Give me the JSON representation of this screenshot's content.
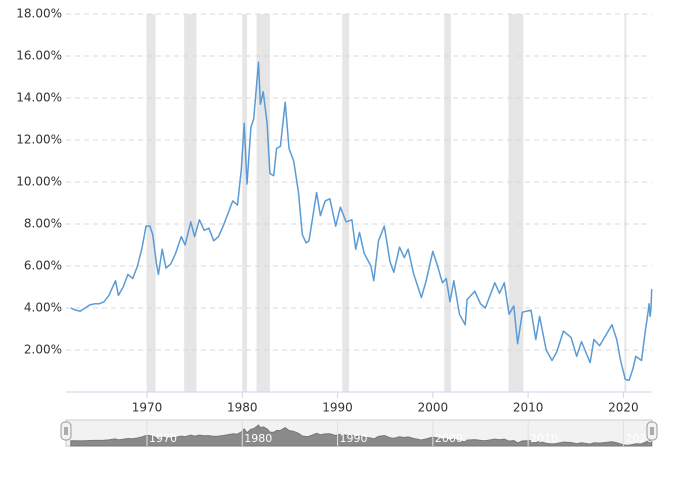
{
  "chart_data": {
    "type": "line",
    "color": "#5b9bd5",
    "grid": true,
    "xlim": [
      1961.5,
      2023
    ],
    "ylim": [
      0,
      18
    ],
    "xticks": [
      1970,
      1980,
      1990,
      2000,
      2010,
      2020
    ],
    "yticks": [
      {
        "value": 2,
        "label": "2.00%"
      },
      {
        "value": 4,
        "label": "4.00%"
      },
      {
        "value": 6,
        "label": "6.00%"
      },
      {
        "value": 8,
        "label": "8.00%"
      },
      {
        "value": 10,
        "label": "10.00%"
      },
      {
        "value": 12,
        "label": "12.00%"
      },
      {
        "value": 14,
        "label": "14.00%"
      },
      {
        "value": 16,
        "label": "16.00%"
      },
      {
        "value": 18,
        "label": "18.00%"
      }
    ],
    "recessions": [
      [
        1969.95,
        1970.9
      ],
      [
        1973.9,
        1975.2
      ],
      [
        1980.0,
        1980.5
      ],
      [
        1981.5,
        1982.9
      ],
      [
        1990.5,
        1991.2
      ],
      [
        2001.2,
        2001.9
      ],
      [
        2007.95,
        2009.5
      ],
      [
        2020.1,
        2020.3
      ]
    ],
    "x": [
      1962.0,
      1962.5,
      1963.0,
      1963.5,
      1964.0,
      1964.5,
      1965.0,
      1965.5,
      1966.0,
      1966.7,
      1967.0,
      1967.5,
      1968.0,
      1968.5,
      1969.0,
      1969.5,
      1969.9,
      1970.3,
      1970.6,
      1971.0,
      1971.2,
      1971.6,
      1972.0,
      1972.5,
      1973.0,
      1973.6,
      1974.0,
      1974.6,
      1975.0,
      1975.5,
      1976.0,
      1976.5,
      1977.0,
      1977.5,
      1978.0,
      1978.5,
      1979.0,
      1979.5,
      1979.9,
      1980.2,
      1980.5,
      1980.9,
      1981.2,
      1981.7,
      1981.9,
      1982.2,
      1982.6,
      1982.9,
      1983.3,
      1983.6,
      1984.0,
      1984.5,
      1984.9,
      1985.4,
      1985.9,
      1986.3,
      1986.7,
      1987.0,
      1987.8,
      1988.2,
      1988.7,
      1989.2,
      1989.8,
      1990.3,
      1990.9,
      1991.5,
      1991.9,
      1992.3,
      1992.8,
      1993.5,
      1993.8,
      1994.3,
      1994.9,
      1995.5,
      1995.9,
      1996.5,
      1997.0,
      1997.4,
      1998.0,
      1998.8,
      1999.3,
      2000.0,
      2000.5,
      2001.0,
      2001.4,
      2001.8,
      2002.2,
      2002.8,
      2003.4,
      2003.6,
      2004.4,
      2005.0,
      2005.5,
      2006.5,
      2007.0,
      2007.5,
      2008.0,
      2008.5,
      2008.9,
      2009.4,
      2010.3,
      2010.8,
      2011.2,
      2011.9,
      2012.5,
      2013.0,
      2013.7,
      2014.5,
      2015.1,
      2015.6,
      2016.5,
      2016.9,
      2017.5,
      2018.8,
      2019.3,
      2019.7,
      2020.2,
      2020.6,
      2021.0,
      2021.3,
      2021.9,
      2022.3,
      2022.5,
      2022.7,
      2022.8,
      2022.9,
      2022.97
    ],
    "values": [
      4.0,
      3.9,
      3.85,
      4.0,
      4.15,
      4.2,
      4.2,
      4.3,
      4.6,
      5.3,
      4.6,
      5.0,
      5.6,
      5.4,
      6.0,
      6.9,
      7.9,
      7.9,
      7.5,
      6.1,
      5.6,
      6.8,
      5.9,
      6.1,
      6.6,
      7.4,
      7.0,
      8.1,
      7.4,
      8.2,
      7.7,
      7.8,
      7.2,
      7.4,
      7.9,
      8.5,
      9.1,
      8.9,
      10.6,
      12.8,
      9.9,
      12.6,
      13.0,
      15.7,
      13.7,
      14.3,
      12.8,
      10.4,
      10.3,
      11.6,
      11.7,
      13.8,
      11.6,
      11.0,
      9.5,
      7.5,
      7.1,
      7.2,
      9.5,
      8.4,
      9.1,
      9.2,
      7.9,
      8.8,
      8.1,
      8.2,
      6.8,
      7.6,
      6.6,
      6.0,
      5.3,
      7.2,
      7.9,
      6.2,
      5.7,
      6.9,
      6.4,
      6.8,
      5.6,
      4.5,
      5.3,
      6.7,
      6.0,
      5.2,
      5.4,
      4.3,
      5.3,
      3.7,
      3.2,
      4.4,
      4.8,
      4.2,
      4.0,
      5.2,
      4.7,
      5.2,
      3.7,
      4.1,
      2.3,
      3.8,
      3.9,
      2.5,
      3.6,
      2.0,
      1.5,
      1.9,
      2.9,
      2.6,
      1.7,
      2.4,
      1.4,
      2.5,
      2.2,
      3.2,
      2.5,
      1.5,
      0.6,
      0.55,
      1.1,
      1.7,
      1.5,
      2.9,
      3.5,
      4.2,
      3.6,
      4.0,
      4.9
    ]
  }
}
